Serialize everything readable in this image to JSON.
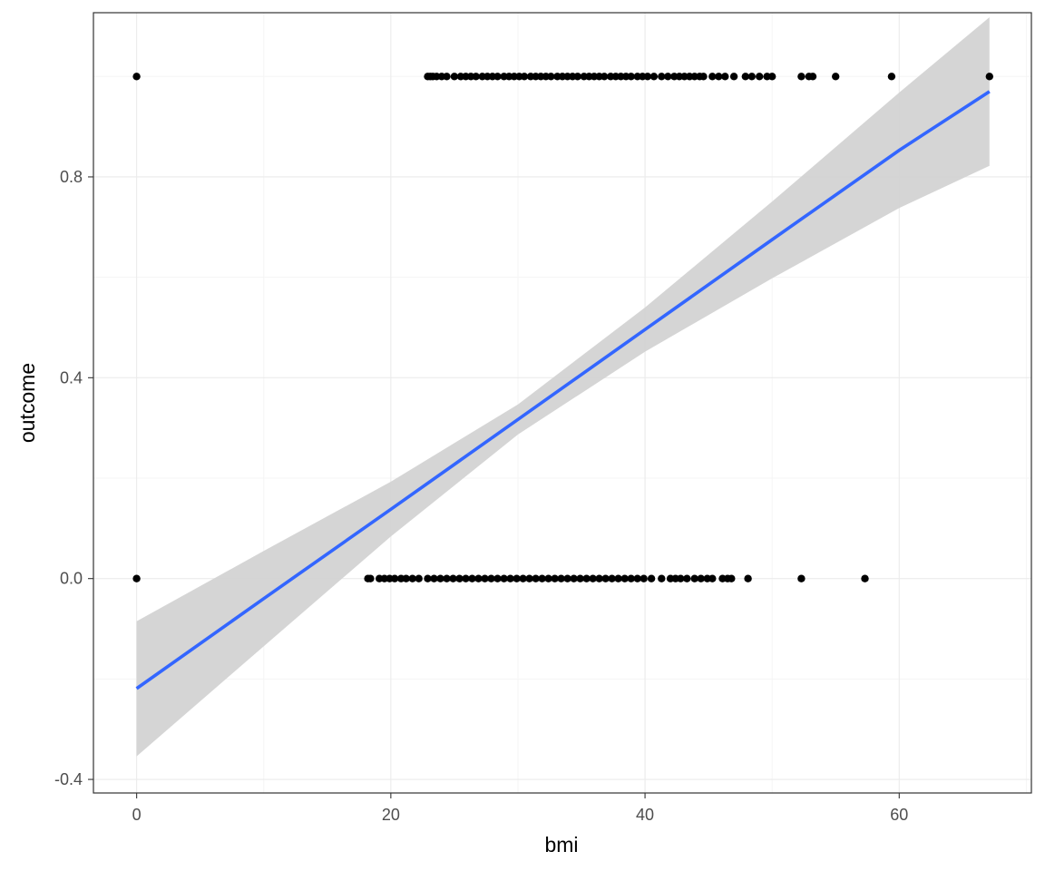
{
  "chart_data": {
    "type": "scatter",
    "title": "",
    "xlabel": "bmi",
    "ylabel": "outcome",
    "xlim": [
      -3.4,
      70.4
    ],
    "ylim": [
      -0.427,
      1.127
    ],
    "x_ticks": [
      0,
      20,
      40,
      60
    ],
    "x_tick_labels": [
      "0",
      "20",
      "40",
      "60"
    ],
    "y_ticks": [
      -0.4,
      0.0,
      0.4,
      0.8
    ],
    "y_tick_labels": [
      "-0.4",
      "0.0",
      "0.4",
      "0.8"
    ],
    "grid": true,
    "theme": "bw",
    "series": [
      {
        "kind": "points",
        "y": 1,
        "x": [
          0,
          22.9,
          23.1,
          23.3,
          23.6,
          24.0,
          24.4,
          25.0,
          25.5,
          25.9,
          26.3,
          26.7,
          27.2,
          27.6,
          28.0,
          28.4,
          28.9,
          29.3,
          29.7,
          30.1,
          30.5,
          31.0,
          31.4,
          31.8,
          32.2,
          32.6,
          33.1,
          33.5,
          33.9,
          34.3,
          34.7,
          35.2,
          35.6,
          36.0,
          36.4,
          36.8,
          37.3,
          37.7,
          38.1,
          38.5,
          38.9,
          39.4,
          39.8,
          40.2,
          40.7,
          41.3,
          41.8,
          42.3,
          42.7,
          43.1,
          43.5,
          43.9,
          44.3,
          44.6,
          45.3,
          45.8,
          46.3,
          47.0,
          47.9,
          48.4,
          49.0,
          49.6,
          50.0,
          52.3,
          52.9,
          53.2,
          55.0,
          59.4,
          67.1
        ]
      },
      {
        "kind": "points",
        "y": 0,
        "x": [
          0,
          18.2,
          18.4,
          19.1,
          19.5,
          19.9,
          20.3,
          20.8,
          21.2,
          21.7,
          22.2,
          22.9,
          23.4,
          23.9,
          24.4,
          24.9,
          25.4,
          25.9,
          26.4,
          26.9,
          27.4,
          27.9,
          28.4,
          28.9,
          29.4,
          29.9,
          30.4,
          30.9,
          31.4,
          31.9,
          32.4,
          32.9,
          33.4,
          33.9,
          34.4,
          34.9,
          35.4,
          35.9,
          36.4,
          36.9,
          37.4,
          37.9,
          38.4,
          38.9,
          39.4,
          39.9,
          40.5,
          41.3,
          42.0,
          42.4,
          42.8,
          43.3,
          43.9,
          44.4,
          44.9,
          45.3,
          46.1,
          46.5,
          46.8,
          48.1,
          52.3,
          57.3
        ]
      }
    ],
    "fit": {
      "method": "lm",
      "color": "#3366ff",
      "band_color": "#d3d3d3",
      "x": [
        0,
        10,
        20,
        30,
        40,
        50,
        60,
        67.1
      ],
      "y": [
        -0.219,
        -0.04,
        0.138,
        0.317,
        0.496,
        0.675,
        0.853,
        0.97
      ],
      "ymin": [
        -0.354,
        -0.135,
        0.084,
        0.287,
        0.452,
        0.598,
        0.738,
        0.822
      ],
      "ymax": [
        -0.085,
        0.055,
        0.193,
        0.347,
        0.54,
        0.751,
        0.968,
        1.118
      ]
    },
    "colors": {
      "points": "#000000",
      "panel_border": "#333333",
      "grid_major": "#ebebeb",
      "grid_minor": "#f5f5f5"
    }
  }
}
